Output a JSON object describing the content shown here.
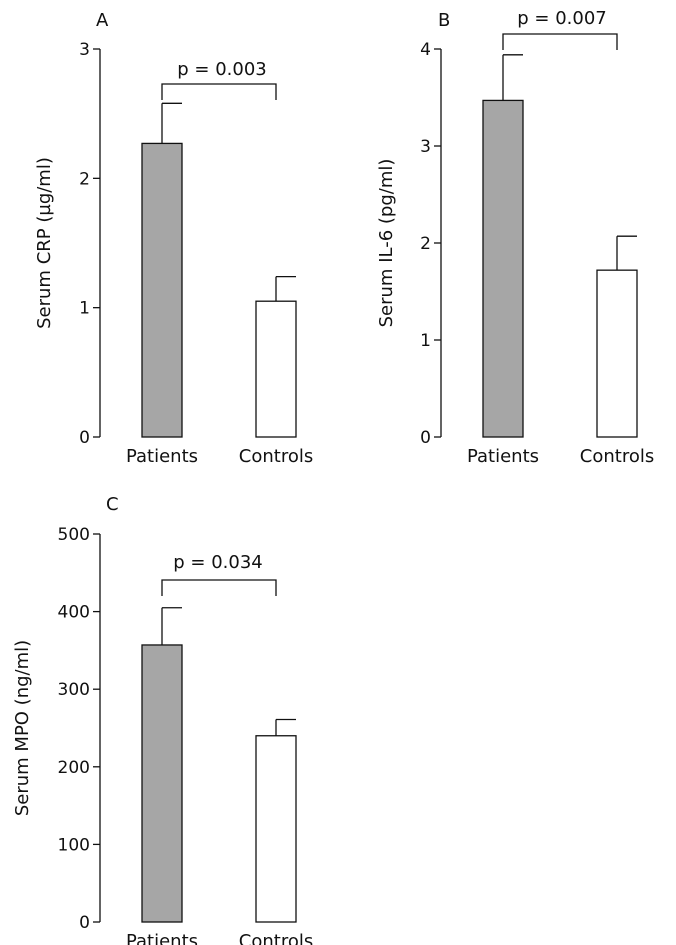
{
  "chart_data": [
    {
      "type": "bar",
      "panel": "A",
      "categories": [
        "Patients",
        "Controls"
      ],
      "values": [
        2.27,
        1.05
      ],
      "errors": [
        0.31,
        0.19
      ],
      "ylabel": "Serum CRP (µg/ml)",
      "ylim": [
        0,
        3
      ],
      "yticks": [
        "0",
        "1",
        "2",
        "3"
      ],
      "annotation": "p = 0.003",
      "colors": [
        "#a6a6a6",
        "#ffffff"
      ]
    },
    {
      "type": "bar",
      "panel": "B",
      "categories": [
        "Patients",
        "Controls"
      ],
      "values": [
        3.47,
        1.72
      ],
      "errors": [
        0.47,
        0.35
      ],
      "ylabel": "Serum IL-6 (pg/ml)",
      "ylim": [
        0,
        4
      ],
      "yticks": [
        "0",
        "1",
        "2",
        "3",
        "4"
      ],
      "annotation": "p = 0.007",
      "colors": [
        "#a6a6a6",
        "#ffffff"
      ]
    },
    {
      "type": "bar",
      "panel": "C",
      "categories": [
        "Patients",
        "Controls"
      ],
      "values": [
        357,
        240
      ],
      "errors": [
        48,
        21
      ],
      "ylabel": "Serum MPO (ng/ml)",
      "ylim": [
        0,
        500
      ],
      "yticks": [
        "0",
        "100",
        "200",
        "300",
        "400",
        "500"
      ],
      "annotation": "p = 0.034",
      "colors": [
        "#a6a6a6",
        "#ffffff"
      ]
    }
  ]
}
